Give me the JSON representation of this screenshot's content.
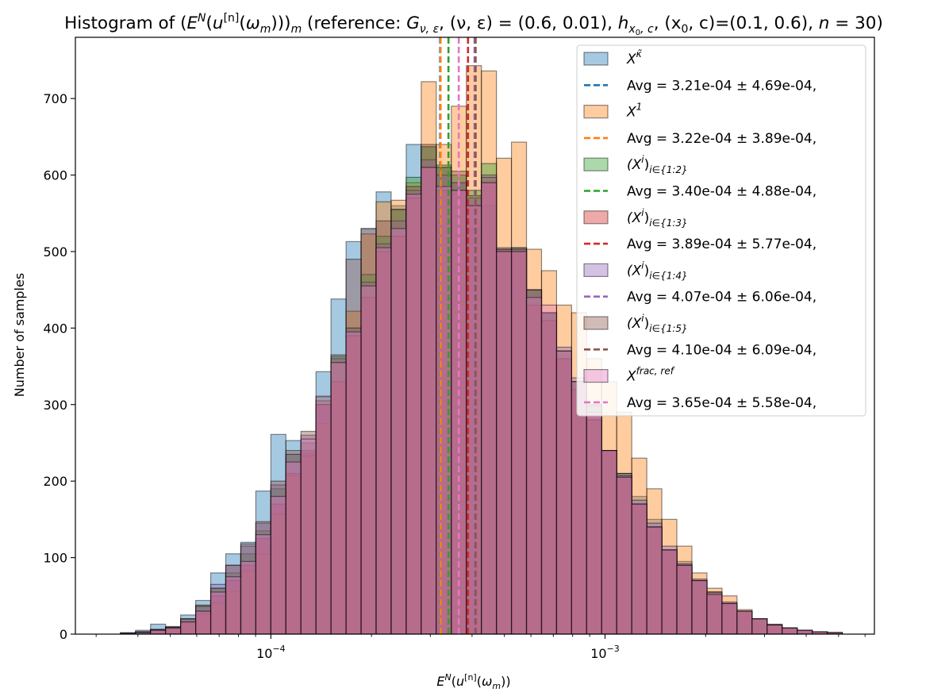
{
  "chart_data": {
    "type": "histogram",
    "title": "Histogram of (E^N(u^[n](ω_m)))_m (reference: G_ν,ε, (ν,ε)= (0.6, 0.01), h_x0,c, (x0,c)=(0.1, 0.6), n=30)",
    "title_parts": {
      "a": "Histogram of (",
      "E": "E",
      "N": "N",
      "b": "(",
      "u": "u",
      "n": "[n]",
      "c": "(",
      "omega": "ω",
      "m": "m",
      "d": ")))",
      "e": " (reference: ",
      "G": "G",
      "Gsub": "ν, ε",
      "f": ", (ν, ε) =  (0.6, 0.01), ",
      "h": "h",
      "hsub": "x",
      "hsub0": "0",
      "hsubc": ", c",
      "g": ", (x",
      "x0": "0",
      "k": ", c)=(0.1, 0.6), ",
      "nvar": "n",
      "l": " = 30)"
    },
    "xlabel": "E^N(u^[n](ω_m))",
    "xlabel_parts": {
      "E": "E",
      "N": "N",
      "a": "(",
      "u": "u",
      "n": "[n]",
      "b": "(",
      "omega": "ω",
      "m": "m",
      "c": "))"
    },
    "ylabel": "Number of samples",
    "xscale": "log",
    "xlim": [
      2.6e-05,
      0.0064
    ],
    "ylim": [
      0,
      780
    ],
    "xtick_labels": [
      {
        "value": 0.0001,
        "base": "10",
        "exp": "−4"
      },
      {
        "value": 0.001,
        "base": "10",
        "exp": "−3"
      }
    ],
    "yticks": [
      0,
      100,
      200,
      300,
      400,
      500,
      600,
      700
    ],
    "ytick_labels": [
      "0",
      "100",
      "200",
      "300",
      "400",
      "500",
      "600",
      "700"
    ],
    "bin_edges_log10": [
      -4.45,
      -4.405,
      -4.36,
      -4.315,
      -4.27,
      -4.225,
      -4.18,
      -4.135,
      -4.09,
      -4.045,
      -4.0,
      -3.955,
      -3.91,
      -3.865,
      -3.82,
      -3.775,
      -3.73,
      -3.685,
      -3.64,
      -3.595,
      -3.55,
      -3.505,
      -3.46,
      -3.415,
      -3.37,
      -3.325,
      -3.28,
      -3.235,
      -3.19,
      -3.145,
      -3.1,
      -3.055,
      -3.01,
      -2.965,
      -2.92,
      -2.875,
      -2.83,
      -2.785,
      -2.74,
      -2.695,
      -2.65,
      -2.605,
      -2.56,
      -2.515,
      -2.47,
      -2.425,
      -2.38,
      -2.335,
      -2.29
    ],
    "legend_position": "upper right",
    "series": [
      {
        "name": "X^κ̃",
        "label_base": "X",
        "label_sup": "κ̃",
        "label_sub": "",
        "color": "#1f77b4",
        "counts": [
          2,
          5,
          13,
          10,
          25,
          44,
          80,
          105,
          120,
          187,
          261,
          253,
          237,
          343,
          438,
          513,
          530,
          578,
          560,
          640,
          637,
          610,
          590,
          530,
          560,
          503,
          503,
          450,
          420,
          360,
          330,
          300,
          240,
          210,
          180,
          150,
          110,
          95,
          70,
          50,
          40,
          30,
          20,
          12,
          8,
          5,
          3,
          2
        ],
        "avg": 0.000321,
        "avg_label": "Avg = 3.21e-04 ± 4.69e-04,"
      },
      {
        "name": "X^1",
        "label_base": "X",
        "label_sup": "1",
        "label_sub": "",
        "color": "#ff7f0e",
        "counts": [
          1,
          3,
          6,
          7,
          15,
          26,
          41,
          56,
          83,
          105,
          157,
          207,
          233,
          275,
          355,
          422,
          523,
          565,
          567,
          590,
          722,
          640,
          690,
          743,
          736,
          622,
          643,
          503,
          475,
          430,
          420,
          360,
          330,
          290,
          230,
          190,
          150,
          115,
          80,
          60,
          50,
          32,
          20,
          13,
          8,
          5,
          3,
          2
        ],
        "avg": 0.000322,
        "avg_label": "Avg = 3.22e-04 ± 3.89e-04,"
      },
      {
        "name": "(X^i)_{i∈{1:2}}",
        "label_base": "(X",
        "label_sup": "i",
        "label_after": ")",
        "label_sub": "i∈{1:2}",
        "color": "#2ca02c",
        "counts": [
          1,
          3,
          6,
          9,
          20,
          37,
          60,
          80,
          105,
          135,
          190,
          235,
          250,
          310,
          363,
          400,
          470,
          520,
          555,
          597,
          637,
          613,
          600,
          580,
          615,
          503,
          505,
          450,
          420,
          370,
          330,
          280,
          240,
          210,
          170,
          140,
          110,
          90,
          70,
          55,
          40,
          30,
          20,
          12,
          8,
          5,
          3,
          2
        ],
        "avg": 0.00034,
        "avg_label": "Avg = 3.40e-04 ± 4.88e-04,"
      },
      {
        "name": "(X^i)_{i∈{1:3}}",
        "label_base": "(X",
        "label_sup": "i",
        "label_after": ")",
        "label_sub": "i∈{1:3}",
        "color": "#d62728",
        "counts": [
          1,
          2,
          5,
          8,
          16,
          30,
          50,
          70,
          90,
          125,
          170,
          210,
          240,
          300,
          330,
          390,
          440,
          500,
          520,
          570,
          610,
          580,
          580,
          560,
          590,
          500,
          500,
          430,
          410,
          360,
          320,
          280,
          240,
          205,
          170,
          140,
          110,
          90,
          70,
          52,
          40,
          30,
          20,
          12,
          8,
          5,
          3,
          2
        ],
        "avg": 0.000389,
        "avg_label": "Avg = 3.89e-04 ± 5.77e-04,"
      },
      {
        "name": "(X^i)_{i∈{1:4}}",
        "label_base": "(X",
        "label_sup": "i",
        "label_after": ")",
        "label_sub": "i∈{1:4}",
        "color": "#9467bd",
        "counts": [
          1,
          3,
          6,
          9,
          20,
          36,
          65,
          90,
          115,
          145,
          195,
          235,
          260,
          300,
          360,
          400,
          460,
          510,
          540,
          580,
          620,
          600,
          590,
          570,
          600,
          505,
          505,
          450,
          420,
          375,
          335,
          300,
          240,
          210,
          175,
          145,
          115,
          92,
          72,
          55,
          42,
          30,
          20,
          12,
          8,
          5,
          3,
          2
        ],
        "avg": 0.000407,
        "avg_label": "Avg = 4.07e-04 ± 6.06e-04,"
      },
      {
        "name": "(X^i)_{i∈{1:5}}",
        "label_base": "(X",
        "label_sup": "i",
        "label_after": ")",
        "label_sub": "i∈{1:5}",
        "color": "#8c564b",
        "counts": [
          1,
          3,
          6,
          9,
          20,
          38,
          60,
          90,
          118,
          147,
          200,
          240,
          265,
          305,
          365,
          490,
          530,
          540,
          555,
          585,
          640,
          610,
          605,
          573,
          597,
          503,
          503,
          450,
          420,
          370,
          330,
          298,
          240,
          207,
          170,
          140,
          110,
          90,
          70,
          55,
          40,
          30,
          20,
          12,
          8,
          5,
          3,
          2
        ],
        "avg": 0.00041,
        "avg_label": "Avg = 4.10e-04 ± 6.09e-04,"
      },
      {
        "name": "X^{frac,ref}",
        "label_base": "X",
        "label_sup": "frac, ref",
        "label_sub": "",
        "color": "#e377c2",
        "counts": [
          1,
          2,
          5,
          8,
          16,
          30,
          55,
          75,
          95,
          130,
          180,
          225,
          255,
          311,
          355,
          395,
          455,
          505,
          530,
          575,
          610,
          585,
          580,
          560,
          590,
          500,
          500,
          440,
          430,
          370,
          330,
          290,
          240,
          205,
          170,
          140,
          110,
          90,
          70,
          52,
          40,
          30,
          20,
          12,
          8,
          5,
          3,
          2
        ],
        "avg": 0.000365,
        "avg_label": "Avg = 3.65e-04 ± 5.58e-04,"
      }
    ]
  }
}
